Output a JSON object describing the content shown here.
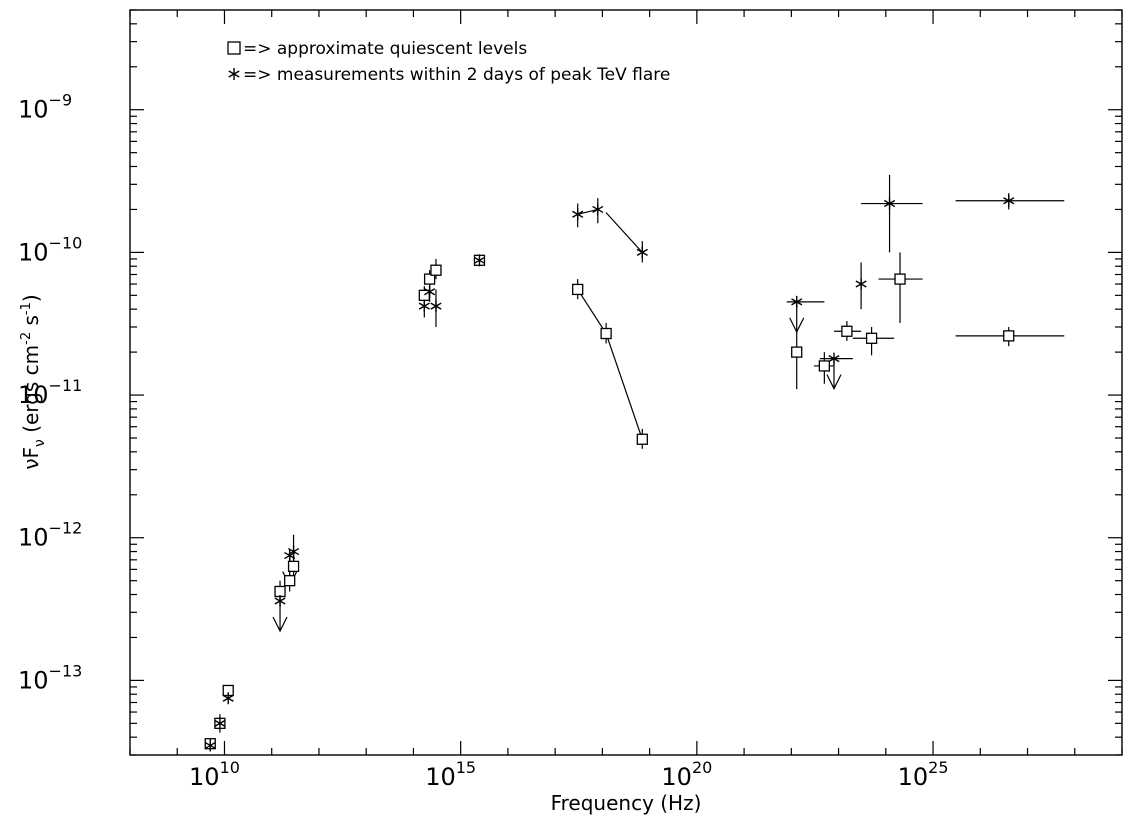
{
  "chart_data": {
    "type": "scatter",
    "x_scale": "log",
    "y_scale": "log",
    "xlabel": "Frequency (Hz)",
    "ylabel": "νF",
    "ylabel_subscript": "ν",
    "ylabel_units": "(ergs cm",
    "ylabel_units_exp1": "-2",
    "ylabel_units_mid": " s",
    "ylabel_units_exp2": "-1",
    "ylabel_units_end": ")",
    "xlim": [
      100000000.0,
      1e+29
    ],
    "ylim": [
      3e-14,
      5e-09
    ],
    "x_ticks": [
      {
        "value": 10000000000.0,
        "base": "10",
        "exp": "10"
      },
      {
        "value": 1000000000000000.0,
        "base": "10",
        "exp": "15"
      },
      {
        "value": 1e+20,
        "base": "10",
        "exp": "20"
      },
      {
        "value": 1e+25,
        "base": "10",
        "exp": "25"
      }
    ],
    "y_ticks": [
      {
        "value": 1e-13,
        "base": "10",
        "exp": "−13"
      },
      {
        "value": 1e-12,
        "base": "10",
        "exp": "−12"
      },
      {
        "value": 1e-11,
        "base": "10",
        "exp": "−11"
      },
      {
        "value": 1e-10,
        "base": "10",
        "exp": "−10"
      },
      {
        "value": 1e-09,
        "base": "10",
        "exp": "−9"
      }
    ],
    "grid": false,
    "legend_position": "top-left",
    "legend": [
      {
        "marker": "square",
        "text": "=> approximate quiescent levels"
      },
      {
        "marker": "asterisk",
        "text": "=> measurements within 2 days of peak TeV flare"
      }
    ],
    "series": [
      {
        "marker": "square",
        "points": [
          {
            "x": 5000000000.0,
            "y": 3.6e-14
          },
          {
            "x": 8000000000.0,
            "y": 5e-14
          },
          {
            "x": 12000000000.0,
            "y": 8.5e-14
          },
          {
            "x": 150000000000.0,
            "y": 4.2e-13,
            "yerr": [
              3.5e-13,
              5e-13
            ]
          },
          {
            "x": 240000000000.0,
            "y": 5e-13,
            "yerr": [
              4.2e-13,
              6e-13
            ]
          },
          {
            "x": 290000000000.0,
            "y": 6.3e-13,
            "yerr": [
              5.3e-13,
              7.5e-13
            ]
          },
          {
            "x": 170000000000000.0,
            "y": 5e-11,
            "yerr": [
              4.3e-11,
              5.8e-11
            ]
          },
          {
            "x": 220000000000000.0,
            "y": 6.5e-11,
            "yerr": [
              5.5e-11,
              7.5e-11
            ]
          },
          {
            "x": 300000000000000.0,
            "y": 7.5e-11,
            "yerr": [
              6.5e-11,
              9e-11
            ]
          },
          {
            "x": 2500000000000000.0,
            "y": 8.8e-11
          },
          {
            "x": 3e+17,
            "y": 5.5e-11,
            "yerr": [
              4.7e-11,
              6.5e-11
            ]
          },
          {
            "x": 1.2e+18,
            "y": 2.7e-11,
            "yerr": [
              2.3e-11,
              3.2e-11
            ]
          },
          {
            "x": 7e+18,
            "y": 4.9e-12,
            "yerr": [
              4.2e-12,
              5.8e-12
            ]
          },
          {
            "x": 1.3e+22,
            "y": 2e-11,
            "yerr": [
              1.1e-11,
              2.8e-11
            ]
          },
          {
            "x": 5e+22,
            "y": 1.6e-11,
            "yerr": [
              1.2e-11,
              2e-11
            ],
            "xerr": [
              3e+22,
              8e+22
            ]
          },
          {
            "x": 1.5e+23,
            "y": 2.8e-11,
            "yerr": [
              2.4e-11,
              3.3e-11
            ],
            "xerr": [
              8e+22,
              3e+23
            ]
          },
          {
            "x": 5e+23,
            "y": 2.5e-11,
            "yerr": [
              1.9e-11,
              3e-11
            ],
            "xerr": [
              2e+23,
              1.5e+24
            ]
          },
          {
            "x": 2e+24,
            "y": 6.5e-11,
            "yerr": [
              3.2e-11,
              1e-10
            ],
            "xerr": [
              7e+23,
              6e+24
            ]
          },
          {
            "x": 4e+26,
            "y": 2.6e-11,
            "yerr": [
              2.2e-11,
              3e-11
            ],
            "xerr": [
              3e+25,
              6e+27
            ]
          }
        ]
      },
      {
        "marker": "asterisk",
        "points": [
          {
            "x": 5000000000.0,
            "y": 3.5e-14
          },
          {
            "x": 8000000000.0,
            "y": 5e-14,
            "yerr": [
              4.3e-14,
              5.8e-14
            ]
          },
          {
            "x": 12000000000.0,
            "y": 7.5e-14
          },
          {
            "x": 150000000000.0,
            "y": 3.6e-13,
            "upper_limit": true
          },
          {
            "x": 240000000000.0,
            "y": 7.5e-13,
            "upper_limit": true
          },
          {
            "x": 290000000000.0,
            "y": 8e-13,
            "yerr": [
              6.5e-13,
              1.05e-12
            ]
          },
          {
            "x": 170000000000000.0,
            "y": 4.2e-11,
            "yerr": [
              3.5e-11,
              5e-11
            ]
          },
          {
            "x": 220000000000000.0,
            "y": 5.3e-11,
            "yerr": [
              4.5e-11,
              6.2e-11
            ]
          },
          {
            "x": 300000000000000.0,
            "y": 4.2e-11,
            "yerr": [
              3e-11,
              5.5e-11
            ]
          },
          {
            "x": 2500000000000000.0,
            "y": 8.8e-11
          },
          {
            "x": 3e+17,
            "y": 1.85e-10,
            "yerr": [
              1.5e-10,
              2.2e-10
            ]
          },
          {
            "x": 8e+17,
            "y": 2e-10,
            "yerr": [
              1.6e-10,
              2.4e-10
            ]
          },
          {
            "x": 7e+18,
            "y": 1e-10,
            "yerr": [
              8.5e-11,
              1.2e-10
            ]
          },
          {
            "x": 1.3e+22,
            "y": 4.5e-11,
            "upper_limit": true,
            "xerr": [
              8e+21,
              5e+22
            ]
          },
          {
            "x": 8e+22,
            "y": 1.8e-11,
            "upper_limit": true,
            "xerr": [
              4e+22,
              2e+23
            ]
          },
          {
            "x": 3e+23,
            "y": 6e-11,
            "yerr": [
              4e-11,
              8.5e-11
            ]
          },
          {
            "x": 1.2e+24,
            "y": 2.2e-10,
            "yerr": [
              1e-10,
              3.5e-10
            ],
            "xerr": [
              3e+23,
              6e+24
            ]
          },
          {
            "x": 4e+26,
            "y": 2.3e-10,
            "yerr": [
              2e-10,
              2.6e-10
            ],
            "xerr": [
              3e+25,
              6e+27
            ]
          }
        ]
      }
    ],
    "connecting_lines": [
      {
        "marker": "asterisk",
        "points": [
          [
            3e+17,
            1.85e-10
          ],
          [
            8e+17,
            2e-10
          ]
        ]
      },
      {
        "marker": "asterisk",
        "points": [
          [
            1.2e+18,
            1.9e-10
          ],
          [
            7e+18,
            1e-10
          ]
        ]
      },
      {
        "marker": "square",
        "points": [
          [
            3e+17,
            5.5e-11
          ],
          [
            1.2e+18,
            2.7e-11
          ],
          [
            7e+18,
            4.9e-12
          ]
        ]
      }
    ]
  }
}
